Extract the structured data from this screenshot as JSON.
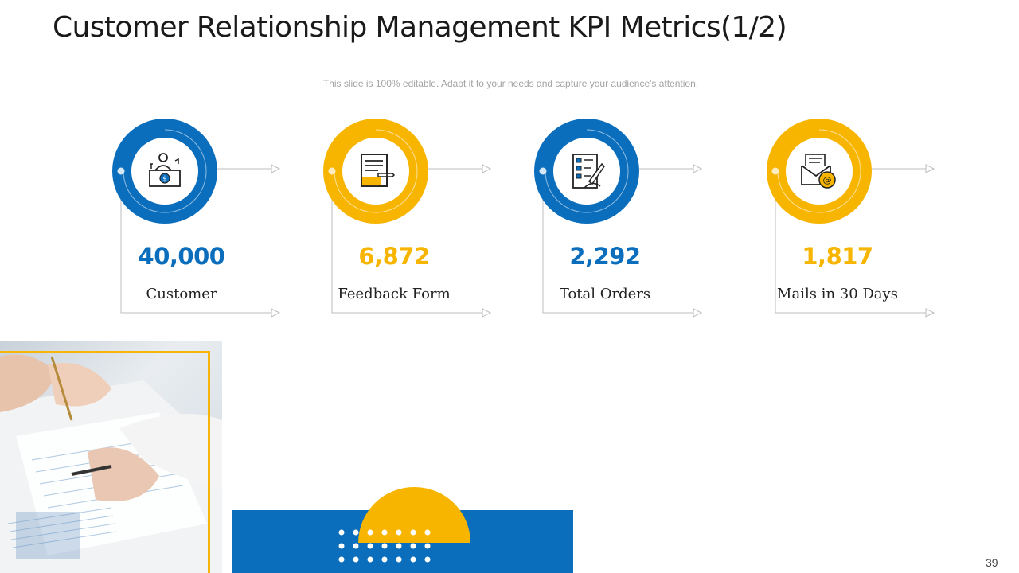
{
  "slide": {
    "title": "Customer Relationship Management KPI Metrics(1/2)",
    "subtitle": "This slide is 100% editable. Adapt it to your needs and capture your audience's attention.",
    "page_number": "39"
  },
  "colors": {
    "blue": "#0a6ebd",
    "yellow": "#f7b500",
    "text": "#222222"
  },
  "kpis": [
    {
      "value": "40,000",
      "label": "Customer",
      "icon": "cashier-icon",
      "color": "#0a6ebd"
    },
    {
      "value": "6,872",
      "label": "Feedback Form",
      "icon": "form-icon",
      "color": "#f7b500"
    },
    {
      "value": "2,292",
      "label": "Total Orders",
      "icon": "checklist-icon",
      "color": "#0a6ebd"
    },
    {
      "value": "1,817",
      "label": "Mails in 30 Days",
      "icon": "email-icon",
      "color": "#f7b500"
    }
  ]
}
